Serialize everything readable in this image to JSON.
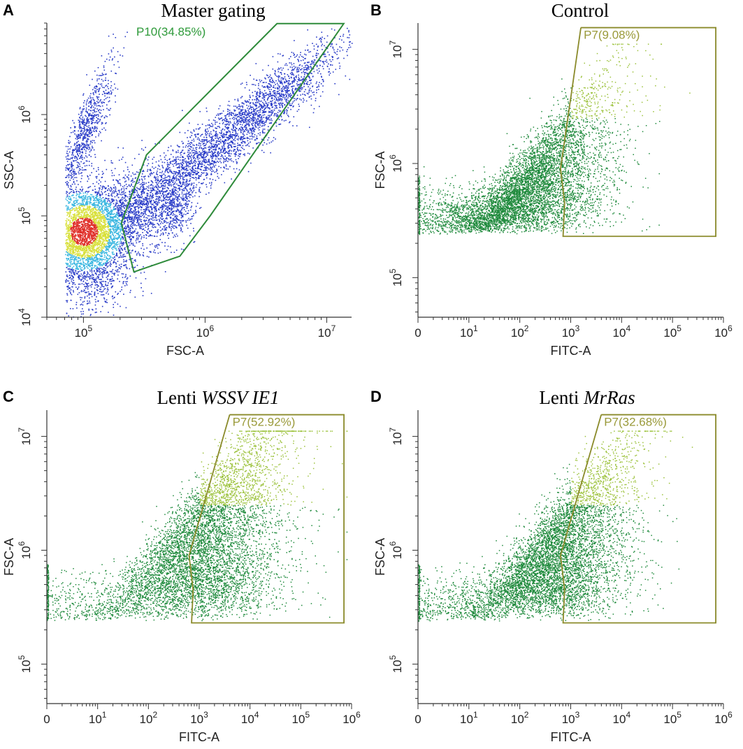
{
  "figure": {
    "panels": [
      {
        "id": "A",
        "title_plain": "Master gating",
        "title_italic": ""
      },
      {
        "id": "B",
        "title_plain": "Control",
        "title_italic": ""
      },
      {
        "id": "C",
        "title_plain": "Lenti ",
        "title_italic": "WSSV IE1"
      },
      {
        "id": "D",
        "title_plain": "Lenti ",
        "title_italic": "MrRas"
      }
    ]
  },
  "colors": {
    "gate_master": "#2e8b3a",
    "gate_p7": "#8a8a2a",
    "label_master": "#2e9a3a",
    "label_p7": "#9a9a3a",
    "dot_main": "#1f8a3c",
    "dot_light": "#9cc23c",
    "density_low": "#2a3cc8",
    "density_mid": "#38b6e0",
    "density_high": "#d8e03a",
    "density_peak": "#e0302a"
  },
  "chart_data": [
    {
      "panel": "A",
      "type": "scatter",
      "title": "Master gating",
      "xlabel": "FSC-A",
      "ylabel": "SSC-A",
      "xscale": "log",
      "yscale": "log",
      "xlim": [
        50000,
        16000000
      ],
      "ylim": [
        10000,
        8000000
      ],
      "xticks": [
        {
          "base": "10",
          "exp": "5"
        },
        {
          "base": "10",
          "exp": "6"
        },
        {
          "base": "10",
          "exp": "7"
        }
      ],
      "xtick_values": [
        100000,
        1000000,
        10000000
      ],
      "yticks": [
        {
          "base": "10",
          "exp": "4"
        },
        {
          "base": "10",
          "exp": "5"
        },
        {
          "base": "10",
          "exp": "6"
        }
      ],
      "ytick_values": [
        10000,
        100000,
        1000000
      ],
      "gate": {
        "name": "P10",
        "percent": 34.85,
        "label": "P10(34.85%)",
        "polygon": [
          [
            260000,
            28000
          ],
          [
            205000,
            85000
          ],
          [
            330000,
            400000
          ],
          [
            3900000,
            7900000
          ],
          [
            13800000,
            7900000
          ],
          [
            1100000,
            100000
          ],
          [
            620000,
            40000
          ],
          [
            360000,
            32000
          ]
        ]
      },
      "colormap": "density"
    },
    {
      "panel": "B",
      "type": "scatter",
      "title": "Control",
      "xlabel": "FITC-A",
      "ylabel": "FSC-A",
      "xscale": "biexponential",
      "yscale": "log",
      "xlim_decades": [
        0,
        6
      ],
      "ylim": [
        45000,
        17000000
      ],
      "xtick_zero": "0",
      "xticks": [
        {
          "base": "10",
          "exp": "1"
        },
        {
          "base": "10",
          "exp": "2"
        },
        {
          "base": "10",
          "exp": "3"
        },
        {
          "base": "10",
          "exp": "4"
        },
        {
          "base": "10",
          "exp": "5"
        },
        {
          "base": "10",
          "exp": "6"
        }
      ],
      "xtick_exps": [
        1,
        2,
        3,
        4,
        5,
        6
      ],
      "yticks": [
        {
          "base": "10",
          "exp": "5"
        },
        {
          "base": "10",
          "exp": "6"
        },
        {
          "base": "10",
          "exp": "7"
        }
      ],
      "ytick_values": [
        100000,
        1000000,
        10000000
      ],
      "gate": {
        "name": "P7",
        "percent": 9.08,
        "label": "P7(9.08%)"
      },
      "population": {
        "center_exp": 2.3,
        "spread": 0.9,
        "fraction_positive": 0.0908
      }
    },
    {
      "panel": "C",
      "type": "scatter",
      "title": "Lenti WSSV IE1",
      "xlabel": "FITC-A",
      "ylabel": "FSC-A",
      "xscale": "biexponential",
      "yscale": "log",
      "xlim_decades": [
        0,
        6
      ],
      "ylim": [
        45000,
        17000000
      ],
      "xtick_zero": "0",
      "xticks": [
        {
          "base": "10",
          "exp": "1"
        },
        {
          "base": "10",
          "exp": "2"
        },
        {
          "base": "10",
          "exp": "3"
        },
        {
          "base": "10",
          "exp": "4"
        },
        {
          "base": "10",
          "exp": "5"
        },
        {
          "base": "10",
          "exp": "6"
        }
      ],
      "xtick_exps": [
        1,
        2,
        3,
        4,
        5,
        6
      ],
      "yticks": [
        {
          "base": "10",
          "exp": "5"
        },
        {
          "base": "10",
          "exp": "6"
        },
        {
          "base": "10",
          "exp": "7"
        }
      ],
      "ytick_values": [
        100000,
        1000000,
        10000000
      ],
      "gate": {
        "name": "P7",
        "percent": 52.92,
        "label": "P7(52.92%)"
      },
      "population": {
        "center_exp": 3.2,
        "spread": 0.9,
        "fraction_positive": 0.5292
      }
    },
    {
      "panel": "D",
      "type": "scatter",
      "title": "Lenti MrRas",
      "xlabel": "FITC-A",
      "ylabel": "FSC-A",
      "xscale": "biexponential",
      "yscale": "log",
      "xlim_decades": [
        0,
        6
      ],
      "ylim": [
        45000,
        17000000
      ],
      "xtick_zero": "0",
      "xticks": [
        {
          "base": "10",
          "exp": "1"
        },
        {
          "base": "10",
          "exp": "2"
        },
        {
          "base": "10",
          "exp": "3"
        },
        {
          "base": "10",
          "exp": "4"
        },
        {
          "base": "10",
          "exp": "5"
        },
        {
          "base": "10",
          "exp": "6"
        }
      ],
      "xtick_exps": [
        1,
        2,
        3,
        4,
        5,
        6
      ],
      "yticks": [
        {
          "base": "10",
          "exp": "5"
        },
        {
          "base": "10",
          "exp": "6"
        },
        {
          "base": "10",
          "exp": "7"
        }
      ],
      "ytick_values": [
        100000,
        1000000,
        10000000
      ],
      "gate": {
        "name": "P7",
        "percent": 32.68,
        "label": "P7(32.68%)"
      },
      "population": {
        "center_exp": 2.8,
        "spread": 0.85,
        "fraction_positive": 0.3268
      }
    }
  ]
}
